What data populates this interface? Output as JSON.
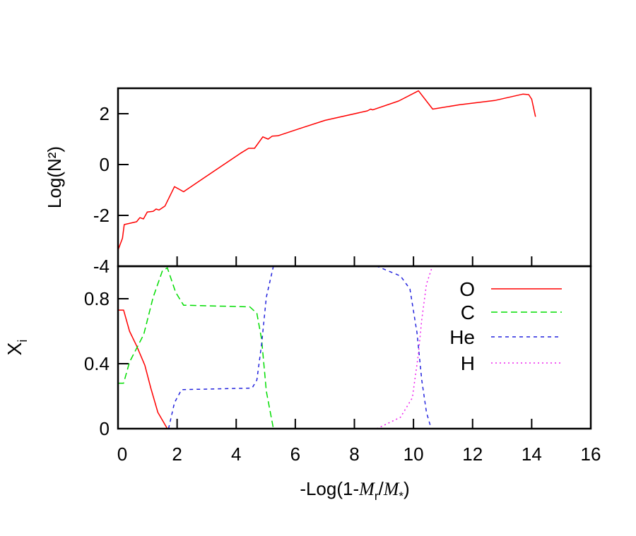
{
  "chart_data": [
    {
      "type": "line",
      "panel": "top",
      "ylabel": "Log(N²)",
      "ylabel_parts": {
        "pre": "Log(",
        "var": "N",
        "sup": "2",
        "post": ")"
      },
      "xlim": [
        0,
        16
      ],
      "ylim": [
        -4,
        3
      ],
      "yticks": [
        2,
        0,
        -2,
        -4
      ],
      "xticks": [
        0,
        2,
        4,
        6,
        8,
        10,
        12,
        14,
        16
      ],
      "series": [
        {
          "name": "N2",
          "color": "#ff0000",
          "dash": "solid",
          "x": [
            0,
            0.15,
            0.21,
            0.63,
            0.74,
            0.86,
            0.99,
            1.19,
            1.29,
            1.39,
            1.59,
            1.91,
            2.22,
            3.18,
            4.14,
            4.42,
            4.62,
            4.9,
            5.08,
            5.22,
            5.41,
            6.21,
            7.01,
            8.44,
            8.55,
            8.62,
            9.5,
            10.17,
            10.65,
            11.55,
            12.75,
            13.7,
            13.9,
            14.0,
            14.13
          ],
          "y": [
            -3.37,
            -2.9,
            -2.36,
            -2.25,
            -2.09,
            -2.14,
            -1.87,
            -1.84,
            -1.75,
            -1.79,
            -1.63,
            -0.87,
            -1.07,
            -0.31,
            0.44,
            0.64,
            0.64,
            1.09,
            1.0,
            1.12,
            1.13,
            1.44,
            1.74,
            2.11,
            2.18,
            2.15,
            2.5,
            2.9,
            2.18,
            2.35,
            2.52,
            2.77,
            2.75,
            2.57,
            1.88
          ]
        }
      ]
    },
    {
      "type": "line",
      "panel": "bottom",
      "ylabel": "Xi",
      "ylabel_parts": {
        "main": "X",
        "sub": "i"
      },
      "xlabel": "-Log(1-Mr/M*)",
      "xlabel_parts": {
        "pre": "-Log(1-",
        "v1": "M",
        "s1": "r",
        "mid": "/",
        "v2": "M",
        "s2": "*",
        "post": ")"
      },
      "xlim": [
        0,
        16
      ],
      "ylim": [
        0,
        1
      ],
      "yticks": [
        0.8,
        0.4,
        0
      ],
      "ytick_labels": [
        "0.8",
        "0.4",
        "0"
      ],
      "xticks": [
        0,
        2,
        4,
        6,
        8,
        10,
        12,
        14,
        16
      ],
      "xtick_labels": [
        "0",
        "2",
        "4",
        "6",
        "8",
        "10",
        "12",
        "14",
        "16"
      ],
      "legend_position": "top-right",
      "series": [
        {
          "name": "O",
          "color": "#ff0000",
          "dash": "solid",
          "x": [
            0,
            0.19,
            0.39,
            0.63,
            0.91,
            1.11,
            1.35,
            1.67
          ],
          "y": [
            0.73,
            0.73,
            0.6,
            0.51,
            0.39,
            0.25,
            0.1,
            0.0
          ]
        },
        {
          "name": "C",
          "color": "#00dd00",
          "dash": "long",
          "x": [
            0,
            0.19,
            0.39,
            0.87,
            1.19,
            1.5,
            1.67,
            1.95,
            2.22,
            4.46,
            4.7,
            4.86,
            5.02,
            5.26
          ],
          "y": [
            0.28,
            0.28,
            0.41,
            0.58,
            0.81,
            0.97,
            0.99,
            0.84,
            0.76,
            0.75,
            0.71,
            0.55,
            0.23,
            0.0
          ]
        },
        {
          "name": "He",
          "color": "#2222dd",
          "dash": "short",
          "x": [
            1.71,
            1.91,
            2.15,
            4.54,
            4.7,
            4.86,
            5.02,
            5.26,
            8.76,
            9.56,
            9.88,
            10.12,
            10.28,
            10.44,
            10.6
          ],
          "y": [
            0.0,
            0.16,
            0.24,
            0.25,
            0.3,
            0.52,
            0.81,
            1.0,
            1.0,
            0.94,
            0.86,
            0.59,
            0.3,
            0.1,
            0.0
          ]
        },
        {
          "name": "H",
          "color": "#ee22ee",
          "dash": "dot",
          "x": [
            8.76,
            9.56,
            9.96,
            10.16,
            10.28,
            10.44,
            10.64
          ],
          "y": [
            0.0,
            0.07,
            0.19,
            0.45,
            0.67,
            0.89,
            1.0
          ]
        }
      ]
    }
  ]
}
